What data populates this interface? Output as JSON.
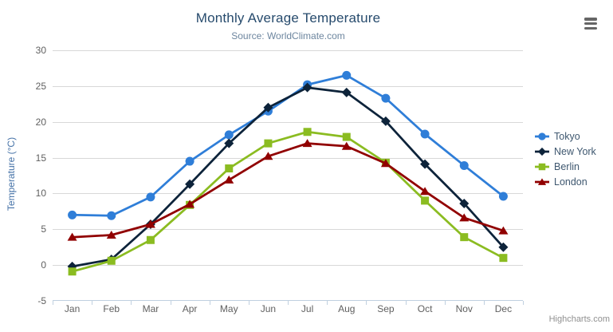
{
  "credits": {
    "label": "Highcharts.com"
  },
  "context_menu": {
    "icon": "hamburger-icon"
  },
  "colors": {
    "title": "#274b6d",
    "subtitle": "#6d869f",
    "axis_label": "#606060",
    "axis_line": "#c0d0e0",
    "gridline": "#d8d8d8",
    "y_axis_title": "#4572a7",
    "legend_text": "#3e576f",
    "credits": "#909090",
    "burger": "#666666"
  },
  "chart_data": {
    "type": "line",
    "title": "Monthly Average Temperature",
    "subtitle": "Source: WorldClimate.com",
    "categories": [
      "Jan",
      "Feb",
      "Mar",
      "Apr",
      "May",
      "Jun",
      "Jul",
      "Aug",
      "Sep",
      "Oct",
      "Nov",
      "Dec"
    ],
    "xlabel": "",
    "ylabel": "Temperature (°C)",
    "ylim": [
      -5,
      30
    ],
    "ytick_step": 5,
    "grid": true,
    "legend_position": "right",
    "series": [
      {
        "name": "Tokyo",
        "color": "#2f7ed8",
        "marker": "circle",
        "values": [
          7.0,
          6.9,
          9.5,
          14.5,
          18.2,
          21.5,
          25.2,
          26.5,
          23.3,
          18.3,
          13.9,
          9.6
        ]
      },
      {
        "name": "New York",
        "color": "#0d233a",
        "marker": "diamond",
        "values": [
          -0.2,
          0.8,
          5.7,
          11.3,
          17.0,
          22.0,
          24.8,
          24.1,
          20.1,
          14.1,
          8.6,
          2.5
        ]
      },
      {
        "name": "Berlin",
        "color": "#8bbc21",
        "marker": "square",
        "values": [
          -0.9,
          0.6,
          3.5,
          8.4,
          13.5,
          17.0,
          18.6,
          17.9,
          14.3,
          9.0,
          3.9,
          1.0
        ]
      },
      {
        "name": "London",
        "color": "#910000",
        "marker": "triangle",
        "values": [
          3.9,
          4.2,
          5.7,
          8.5,
          11.9,
          15.2,
          17.0,
          16.6,
          14.2,
          10.3,
          6.6,
          4.8
        ]
      }
    ]
  }
}
